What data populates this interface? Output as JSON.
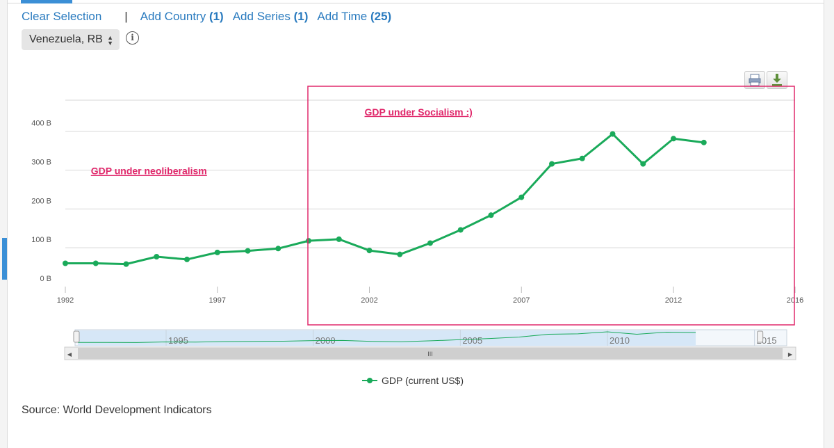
{
  "toolbar": {
    "clear_label": "Clear Selection",
    "separator": "|",
    "add_country_label": "Add Country",
    "add_country_count": "(1)",
    "add_series_label": "Add Series",
    "add_series_count": "(1)",
    "add_time_label": "Add Time",
    "add_time_count": "(25)"
  },
  "country_select": {
    "value": "Venezuela, RB"
  },
  "info_icon": {
    "glyph": "i"
  },
  "buttons": {
    "print": "print-icon",
    "download": "download-icon"
  },
  "source": {
    "text": "Source: World Development Indicators"
  },
  "colors": {
    "series": "#1aaa5a",
    "annotation": "#e0286b",
    "grid": "#d7d7d7",
    "navigator_fill": "#d6e7f7"
  },
  "chart_data": {
    "type": "line",
    "title": "",
    "xlabel": "",
    "ylabel": "",
    "x": [
      1992,
      1993,
      1994,
      1995,
      1996,
      1997,
      1998,
      1999,
      2000,
      2001,
      2002,
      2003,
      2004,
      2005,
      2006,
      2007,
      2008,
      2009,
      2010,
      2011,
      2012,
      2013
    ],
    "series": [
      {
        "name": "GDP (current US$)",
        "values": [
          60,
          60,
          58,
          77,
          70,
          88,
          92,
          98,
          118,
          122,
          93,
          83,
          112,
          146,
          184,
          230,
          316,
          330,
          393,
          316,
          381,
          371
        ]
      }
    ],
    "y_unit": "B",
    "ylim": [
      0,
      480
    ],
    "y_ticks": [
      0,
      100,
      200,
      300,
      400
    ],
    "y_tick_labels": [
      "0 B",
      "100 B",
      "200 B",
      "300 B",
      "400 B"
    ],
    "xlim": [
      1992,
      2016
    ],
    "x_ticks": [
      1992,
      1997,
      2002,
      2007,
      2012,
      2016
    ],
    "x_tick_labels": [
      "1992",
      "1997",
      "2002",
      "2007",
      "2012",
      "2016"
    ],
    "legend": {
      "position": "bottom-center",
      "label": "GDP (current US$)"
    },
    "annotations": [
      {
        "text": "GDP under neoliberalism",
        "x": 1993,
        "y": 298
      },
      {
        "text": "GDP under Socialism :)",
        "x": 2002,
        "y": 450
      }
    ],
    "highlight_range": [
      2000,
      2016
    ],
    "navigator": {
      "x_range": [
        1992,
        2016
      ],
      "tick_labels": [
        "1995",
        "2000",
        "2005",
        "2010",
        "2015"
      ],
      "scroll_grip": "III",
      "left_arrow": "◀",
      "right_arrow": "▶"
    }
  }
}
